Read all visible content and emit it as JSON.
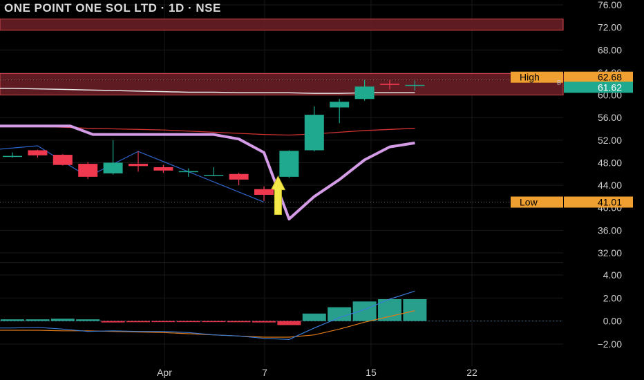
{
  "chart_data": {
    "type": "candlestick",
    "title": "ONE POINT ONE SOL LTD · 1D · NSE",
    "x_tick_labels": [
      "Apr",
      "7",
      "15",
      "22"
    ],
    "price_axis": {
      "ticks": [
        "76.00",
        "72.00",
        "68.00",
        "64.00",
        "60.00",
        "56.00",
        "52.00",
        "48.00",
        "44.00",
        "40.00",
        "36.00",
        "32.00"
      ],
      "range": [
        29.5,
        77.5
      ]
    },
    "indicator_axis": {
      "ticks": [
        "4.00",
        "2.00",
        "0.00",
        "−2.00"
      ],
      "range": [
        -3.0,
        5.0
      ]
    },
    "candles": [
      {
        "open": 49.2,
        "high": 49.8,
        "low": 48.9,
        "close": 49.2
      },
      {
        "open": 50.2,
        "high": 50.3,
        "low": 48.9,
        "close": 49.3
      },
      {
        "open": 49.4,
        "high": 49.5,
        "low": 47.5,
        "close": 47.6
      },
      {
        "open": 47.8,
        "high": 48.1,
        "low": 45.1,
        "close": 45.5
      },
      {
        "open": 46.1,
        "high": 52.0,
        "low": 45.9,
        "close": 48.0
      },
      {
        "open": 47.8,
        "high": 50.0,
        "low": 46.4,
        "close": 47.4
      },
      {
        "open": 47.2,
        "high": 47.6,
        "low": 46.2,
        "close": 46.6
      },
      {
        "open": 46.5,
        "high": 47.0,
        "low": 45.5,
        "close": 46.5
      },
      {
        "open": 45.8,
        "high": 47.2,
        "low": 45.6,
        "close": 45.8
      },
      {
        "open": 46.0,
        "high": 46.2,
        "low": 44.0,
        "close": 45.0
      },
      {
        "open": 43.3,
        "high": 43.8,
        "low": 41.2,
        "close": 42.3
      },
      {
        "open": 45.5,
        "high": 50.2,
        "low": 45.3,
        "close": 50.1
      },
      {
        "open": 50.2,
        "high": 58.0,
        "low": 50.0,
        "close": 56.5
      },
      {
        "open": 57.8,
        "high": 59.3,
        "low": 55.0,
        "close": 58.8
      },
      {
        "open": 59.3,
        "high": 62.7,
        "low": 59.0,
        "close": 61.5
      },
      {
        "open": 62.0,
        "high": 62.7,
        "low": 61.0,
        "close": 61.8
      },
      {
        "open": 61.7,
        "high": 62.6,
        "low": 60.8,
        "close": 61.8
      }
    ],
    "resistance_zones": [
      {
        "low": 71.5,
        "high": 73.5
      },
      {
        "low": 60.0,
        "high": 63.8
      }
    ],
    "white_line": [
      61.2,
      61.1,
      61.0,
      60.9,
      60.8,
      60.7,
      60.6,
      60.5,
      60.5,
      60.4,
      60.4,
      60.4,
      60.3,
      60.3,
      60.4,
      60.4,
      60.4
    ],
    "red_line": [
      54.5,
      54.4,
      54.3,
      54.1,
      54.0,
      53.9,
      53.8,
      53.6,
      53.4,
      53.2,
      53.0,
      52.9,
      53.1,
      53.4,
      53.7,
      53.9,
      54.1
    ],
    "purple_line": [
      {
        "i": -2.0,
        "v": 54.5
      },
      {
        "i": 2.3,
        "v": 54.5
      },
      {
        "i": 3.2,
        "v": 53.0
      },
      {
        "i": 8.0,
        "v": 53.0
      },
      {
        "i": 9.0,
        "v": 52.2
      },
      {
        "i": 10.0,
        "v": 49.8
      },
      {
        "i": 11.0,
        "v": 38.0
      },
      {
        "i": 12.0,
        "v": 42.0
      },
      {
        "i": 13.0,
        "v": 45.0
      },
      {
        "i": 14.0,
        "v": 48.5
      },
      {
        "i": 15.0,
        "v": 50.8
      },
      {
        "i": 16.0,
        "v": 51.5
      }
    ],
    "blue_zigzag": [
      {
        "i": -1.0,
        "v": 50.2
      },
      {
        "i": 1.0,
        "v": 51.0
      },
      {
        "i": 3.0,
        "v": 45.5
      },
      {
        "i": 5.0,
        "v": 50.0
      },
      {
        "i": 10.0,
        "v": 41.0
      }
    ],
    "signal_arrow": {
      "index": 11,
      "color": "#f5e94a"
    },
    "levels": {
      "high": {
        "label": "High",
        "value": "62.68",
        "price": 62.68
      },
      "last": {
        "value": "61.62",
        "price": 61.62,
        "marker": "B"
      },
      "low": {
        "label": "Low",
        "value": "41.01",
        "price": 41.01
      }
    },
    "histogram": [
      0.15,
      0.15,
      0.2,
      0.15,
      -0.12,
      -0.1,
      -0.08,
      -0.07,
      -0.08,
      -0.1,
      -0.12,
      -0.35,
      0.65,
      1.2,
      1.7,
      1.9,
      1.9
    ],
    "macd_line": [
      -0.6,
      -0.55,
      -0.7,
      -0.9,
      -0.85,
      -0.9,
      -0.9,
      -1.0,
      -1.2,
      -1.3,
      -1.5,
      -1.6,
      -0.6,
      0.3,
      1.0,
      1.9,
      2.6
    ],
    "signal_line": [
      -0.8,
      -0.8,
      -0.85,
      -0.85,
      -0.9,
      -0.95,
      -1.0,
      -1.1,
      -1.2,
      -1.3,
      -1.4,
      -1.4,
      -1.2,
      -0.7,
      -0.1,
      0.4,
      0.9
    ],
    "colors": {
      "up": "#1fa98e",
      "down": "#f0384f",
      "zone_fill": "#6e2027",
      "zone_border": "#d9474f",
      "white_line": "#e8e8e8",
      "red_line": "#d23232",
      "purple_line": "#d49be6",
      "blue_line": "#2d64c8",
      "macd_line": "#3a7bd5",
      "signal_line": "#e07b1a",
      "hist": "#2aa894",
      "level_label": "#f0a030",
      "last_label": "#1fa98e",
      "grid": "#1a1a1a",
      "axis_text": "#cfcfcf"
    }
  }
}
